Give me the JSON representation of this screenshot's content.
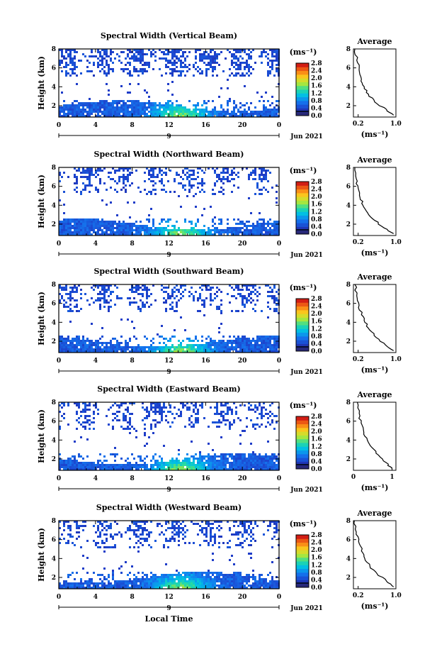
{
  "figure": {
    "date_label": "Jun 2021",
    "day_label": "9",
    "x_axis_title": "Local Time",
    "colorbar_unit": "(ms⁻¹)",
    "average_title": "Average",
    "average_xlabel": "(ms⁻¹)"
  },
  "chart_data": [
    {
      "type": "heatmap",
      "title": "Spectral Width (Vertical Beam)",
      "xlabel": "",
      "ylabel": "Height (km)",
      "xticks": [
        "0",
        "4",
        "8",
        "12",
        "16",
        "20",
        "0"
      ],
      "yticks": [
        "2",
        "4",
        "6",
        "8"
      ],
      "xlim": [
        0,
        24
      ],
      "ylim": [
        0.8,
        8
      ],
      "colorbar": {
        "ticks": [
          "0.0",
          "0.4",
          "0.8",
          "1.2",
          "1.6",
          "2.0",
          "2.4",
          "2.8"
        ],
        "range": [
          0,
          2.8
        ]
      },
      "average_profile": {
        "type": "line",
        "title": "Average",
        "xticks": [
          "0.2",
          "1.0"
        ],
        "xlim": [
          0.1,
          1.0
        ],
        "yticks": [
          "2",
          "4",
          "6",
          "8"
        ],
        "ylim": [
          0.8,
          8
        ],
        "x": [
          0.95,
          0.8,
          0.55,
          0.42,
          0.33,
          0.27,
          0.22,
          0.17,
          0.13
        ],
        "y": [
          1.0,
          1.6,
          2.4,
          3.2,
          4.0,
          4.8,
          5.8,
          6.8,
          8.0
        ]
      }
    },
    {
      "type": "heatmap",
      "title": "Spectral Width (Northward Beam)",
      "xlabel": "",
      "ylabel": "Height (km)",
      "xticks": [
        "0",
        "4",
        "8",
        "12",
        "16",
        "20",
        "0"
      ],
      "yticks": [
        "2",
        "4",
        "6",
        "8"
      ],
      "xlim": [
        0,
        24
      ],
      "ylim": [
        0.8,
        8
      ],
      "colorbar": {
        "ticks": [
          "0.0",
          "0.4",
          "0.8",
          "1.2",
          "1.6",
          "2.0",
          "2.4",
          "2.8"
        ],
        "range": [
          0,
          2.8
        ]
      },
      "average_profile": {
        "type": "line",
        "title": "Average",
        "xticks": [
          "0.2",
          "1.0"
        ],
        "xlim": [
          0.1,
          1.0
        ],
        "yticks": [
          "2",
          "4",
          "6",
          "8"
        ],
        "ylim": [
          0.8,
          8
        ],
        "x": [
          0.95,
          0.75,
          0.55,
          0.4,
          0.3,
          0.24,
          0.2,
          0.16,
          0.13
        ],
        "y": [
          1.0,
          1.6,
          2.4,
          3.2,
          4.0,
          4.8,
          5.8,
          6.8,
          8.0
        ]
      }
    },
    {
      "type": "heatmap",
      "title": "Spectral Width (Southward Beam)",
      "xlabel": "",
      "ylabel": "Height (km)",
      "xticks": [
        "0",
        "4",
        "8",
        "12",
        "16",
        "20",
        "0"
      ],
      "yticks": [
        "2",
        "4",
        "6",
        "8"
      ],
      "xlim": [
        0,
        24
      ],
      "ylim": [
        0.8,
        8
      ],
      "colorbar": {
        "ticks": [
          "0.0",
          "0.4",
          "0.8",
          "1.2",
          "1.6",
          "2.0",
          "2.4",
          "2.8"
        ],
        "range": [
          0,
          2.8
        ]
      },
      "average_profile": {
        "type": "line",
        "title": "Average",
        "xticks": [
          "0.2",
          "1.0"
        ],
        "xlim": [
          0.1,
          1.0
        ],
        "yticks": [
          "2",
          "4",
          "6",
          "8"
        ],
        "ylim": [
          0.8,
          8
        ],
        "x": [
          0.95,
          0.78,
          0.58,
          0.44,
          0.34,
          0.27,
          0.22,
          0.17,
          0.13
        ],
        "y": [
          1.0,
          1.6,
          2.4,
          3.2,
          4.0,
          4.8,
          5.8,
          6.8,
          8.0
        ]
      }
    },
    {
      "type": "heatmap",
      "title": "Spectral Width (Eastward Beam)",
      "xlabel": "",
      "ylabel": "Height (km)",
      "xticks": [
        "0",
        "4",
        "8",
        "12",
        "16",
        "20",
        "0"
      ],
      "yticks": [
        "2",
        "4",
        "6",
        "8"
      ],
      "xlim": [
        0,
        24
      ],
      "ylim": [
        0.8,
        8
      ],
      "colorbar": {
        "ticks": [
          "0.0",
          "0.4",
          "0.8",
          "1.2",
          "1.6",
          "2.0",
          "2.4",
          "2.8"
        ],
        "range": [
          0,
          2.8
        ]
      },
      "average_profile": {
        "type": "line",
        "title": "Average",
        "xticks": [
          "0",
          "1"
        ],
        "xlim": [
          0,
          1.1
        ],
        "yticks": [
          "2",
          "4",
          "6",
          "8"
        ],
        "ylim": [
          0.8,
          8
        ],
        "x": [
          1.0,
          0.85,
          0.65,
          0.48,
          0.36,
          0.27,
          0.2,
          0.15,
          0.1
        ],
        "y": [
          1.0,
          1.6,
          2.4,
          3.2,
          4.0,
          4.8,
          5.8,
          6.8,
          8.0
        ]
      }
    },
    {
      "type": "heatmap",
      "title": "Spectral Width (Westward Beam)",
      "xlabel": "Local Time",
      "ylabel": "Height (km)",
      "xticks": [
        "0",
        "4",
        "8",
        "12",
        "16",
        "20",
        "0"
      ],
      "yticks": [
        "2",
        "4",
        "6",
        "8"
      ],
      "xlim": [
        0,
        24
      ],
      "ylim": [
        0.8,
        8
      ],
      "colorbar": {
        "ticks": [
          "0.0",
          "0.4",
          "0.8",
          "1.2",
          "1.6",
          "2.0",
          "2.4",
          "2.8"
        ],
        "range": [
          0,
          2.8
        ]
      },
      "average_profile": {
        "type": "line",
        "title": "Average",
        "xticks": [
          "0.2",
          "1.0"
        ],
        "xlim": [
          0.1,
          1.0
        ],
        "yticks": [
          "2",
          "4",
          "6",
          "8"
        ],
        "ylim": [
          0.8,
          8
        ],
        "x": [
          0.95,
          0.8,
          0.6,
          0.45,
          0.34,
          0.27,
          0.21,
          0.16,
          0.12
        ],
        "y": [
          1.0,
          1.6,
          2.4,
          3.2,
          4.0,
          4.8,
          5.8,
          6.8,
          8.0
        ]
      }
    }
  ]
}
